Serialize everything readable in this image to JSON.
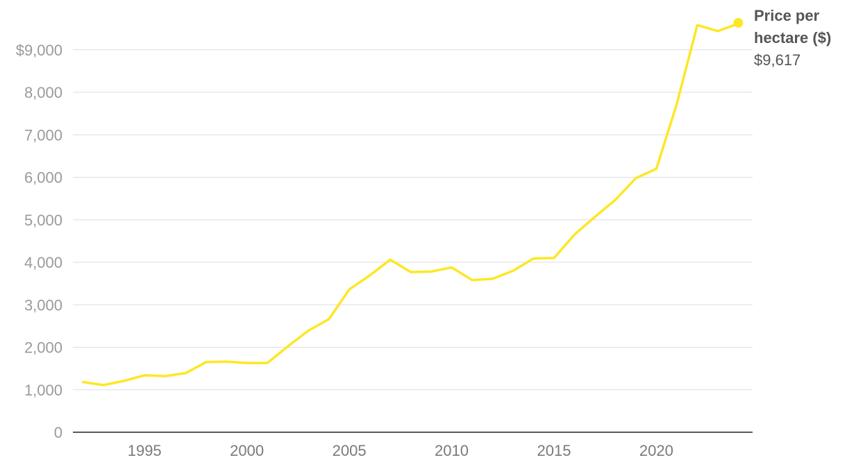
{
  "chart_data": {
    "type": "line",
    "title": "",
    "xlabel": "",
    "ylabel": "",
    "x": [
      1992,
      1993,
      1994,
      1995,
      1996,
      1997,
      1998,
      1999,
      2000,
      2001,
      2002,
      2003,
      2004,
      2005,
      2006,
      2007,
      2008,
      2009,
      2010,
      2011,
      2012,
      2013,
      2014,
      2015,
      2016,
      2017,
      2018,
      2019,
      2020,
      2021,
      2022,
      2023,
      2024
    ],
    "series": [
      {
        "name_lines": [
          "Price per",
          "hectare ($)"
        ],
        "last_value_label": "$9,617",
        "color": "#fde725",
        "values": [
          1180,
          1110,
          1210,
          1340,
          1320,
          1390,
          1650,
          1660,
          1630,
          1630,
          2020,
          2390,
          2660,
          3360,
          3690,
          4060,
          3770,
          3780,
          3880,
          3580,
          3610,
          3800,
          4090,
          4100,
          4650,
          5070,
          5470,
          5980,
          6200,
          7730,
          9580,
          9440,
          9617
        ]
      }
    ],
    "xlim": [
      1991.5,
      2024.7
    ],
    "ylim": [
      0,
      9600
    ],
    "y_ticks": [
      0,
      1000,
      2000,
      3000,
      4000,
      5000,
      6000,
      7000,
      8000,
      9000
    ],
    "y_tick_labels": [
      "0",
      "1,000",
      "2,000",
      "3,000",
      "4,000",
      "5,000",
      "6,000",
      "7,000",
      "8,000",
      "$9,000"
    ],
    "x_ticks": [
      1995,
      2000,
      2005,
      2010,
      2015,
      2020
    ],
    "x_tick_labels": [
      "1995",
      "2000",
      "2005",
      "2010",
      "2015",
      "2020"
    ],
    "grid": true,
    "legend": "end-of-line label"
  }
}
